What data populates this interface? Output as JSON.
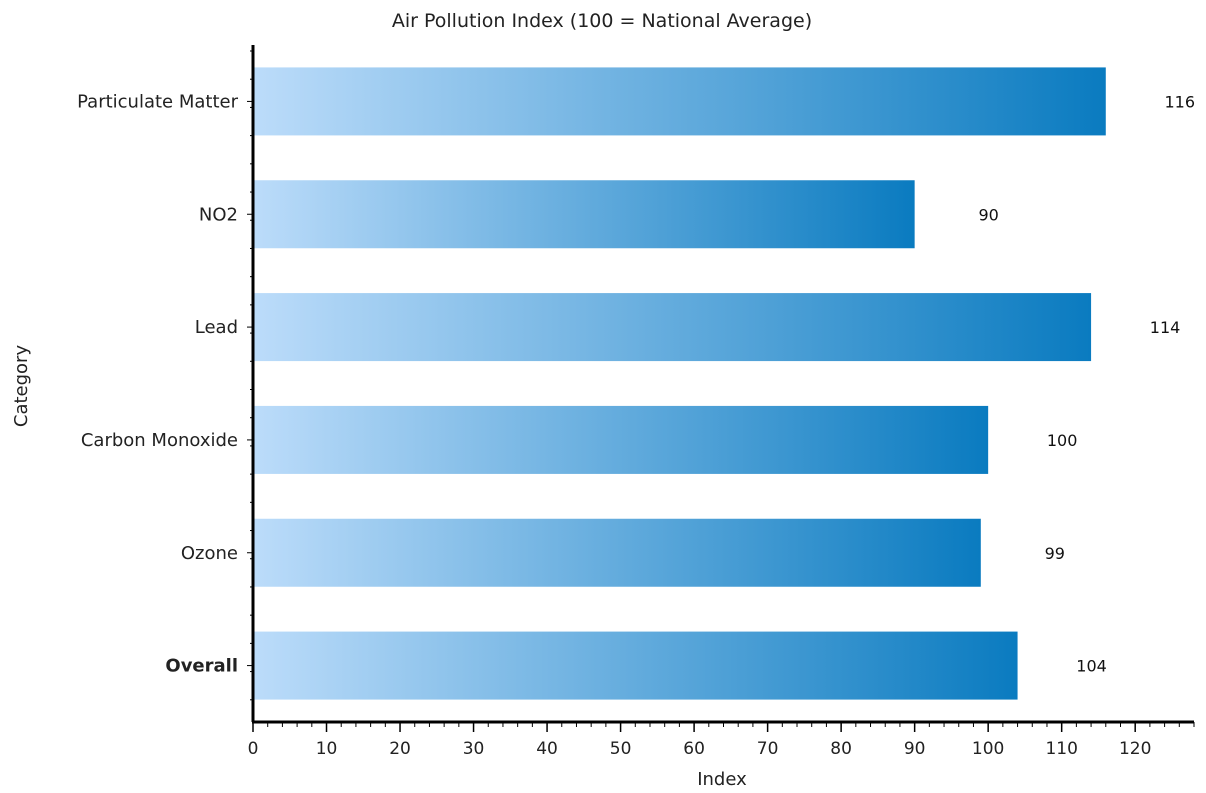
{
  "chart_data": {
    "type": "bar",
    "orientation": "horizontal",
    "title": "Air Pollution Index (100 = National Average)",
    "xlabel": "Index",
    "ylabel": "Category",
    "categories": [
      "Particulate Matter",
      "NO2",
      "Lead",
      "Carbon Monoxide",
      "Ozone",
      "Overall"
    ],
    "values": [
      116,
      90,
      114,
      100,
      99,
      104
    ],
    "bold_categories": [
      "Overall"
    ],
    "xlim": [
      0,
      128
    ],
    "xticks": [
      0,
      10,
      20,
      30,
      40,
      50,
      60,
      70,
      80,
      90,
      100,
      110,
      120
    ],
    "grid": false,
    "bar_gradient": [
      "#bcdcfa",
      "#0a7bc0"
    ],
    "axis_color": "#000000"
  }
}
